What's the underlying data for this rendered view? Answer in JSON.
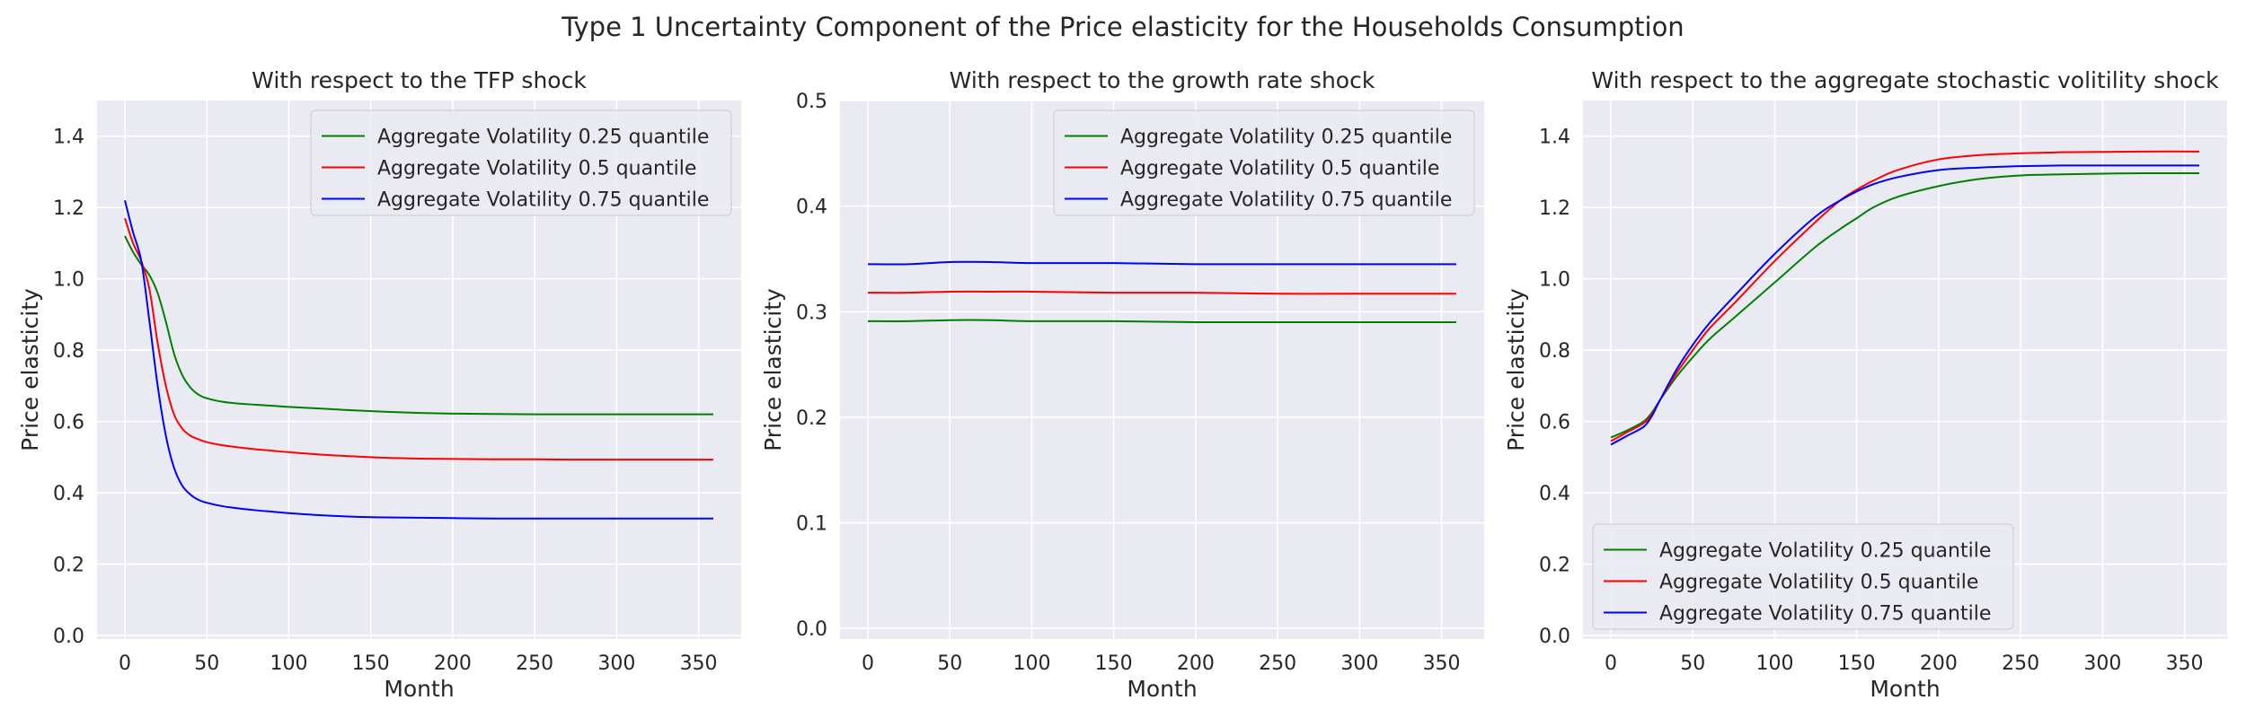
{
  "figure": {
    "suptitle": "Type 1 Uncertainty Component of the Price elasticity for the Households Consumption"
  },
  "chart_data": [
    {
      "type": "line",
      "title": "With respect to the TFP shock",
      "xlabel": "Month",
      "ylabel": "Price elasticity",
      "xlim": [
        -17,
        376
      ],
      "ylim": [
        -0.01,
        1.5
      ],
      "xticks": [
        0,
        50,
        100,
        150,
        200,
        250,
        300,
        350
      ],
      "yticks": [
        0.0,
        0.2,
        0.4,
        0.6,
        0.8,
        1.0,
        1.2,
        1.4
      ],
      "grid": true,
      "legend": "top-right",
      "x": [
        0,
        5,
        10,
        15,
        20,
        25,
        30,
        35,
        40,
        45,
        50,
        60,
        70,
        80,
        90,
        100,
        120,
        140,
        160,
        180,
        200,
        225,
        250,
        275,
        300,
        325,
        359
      ],
      "series": [
        {
          "name": "Aggregate Volatility 0.25 quantile",
          "color": "#008000",
          "values": [
            1.12,
            1.075,
            1.04,
            1.01,
            0.96,
            0.88,
            0.79,
            0.73,
            0.695,
            0.675,
            0.665,
            0.655,
            0.65,
            0.647,
            0.644,
            0.641,
            0.636,
            0.631,
            0.627,
            0.624,
            0.622,
            0.621,
            0.62,
            0.62,
            0.62,
            0.62,
            0.62
          ]
        },
        {
          "name": "Aggregate Volatility 0.5 quantile",
          "color": "#ff0000",
          "values": [
            1.17,
            1.1,
            1.05,
            0.97,
            0.82,
            0.7,
            0.62,
            0.58,
            0.56,
            0.55,
            0.542,
            0.533,
            0.527,
            0.522,
            0.518,
            0.514,
            0.507,
            0.502,
            0.498,
            0.496,
            0.495,
            0.494,
            0.494,
            0.493,
            0.493,
            0.493,
            0.493
          ]
        },
        {
          "name": "Aggregate Volatility 0.75 quantile",
          "color": "#0000ff",
          "values": [
            1.22,
            1.13,
            1.05,
            0.88,
            0.7,
            0.56,
            0.47,
            0.42,
            0.395,
            0.38,
            0.372,
            0.362,
            0.356,
            0.351,
            0.347,
            0.343,
            0.337,
            0.333,
            0.331,
            0.33,
            0.329,
            0.328,
            0.328,
            0.328,
            0.328,
            0.328,
            0.328
          ]
        }
      ]
    },
    {
      "type": "line",
      "title": "With respect to the growth rate shock",
      "xlabel": "Month",
      "ylabel": "Price elasticity",
      "xlim": [
        -17,
        376
      ],
      "ylim": [
        -0.01,
        0.5
      ],
      "xticks": [
        0,
        50,
        100,
        150,
        200,
        250,
        300,
        350
      ],
      "yticks": [
        0.0,
        0.1,
        0.2,
        0.3,
        0.4,
        0.5
      ],
      "grid": true,
      "legend": "top-right",
      "x": [
        0,
        25,
        50,
        75,
        100,
        150,
        200,
        250,
        300,
        359
      ],
      "series": [
        {
          "name": "Aggregate Volatility 0.25 quantile",
          "color": "#008000",
          "values": [
            0.291,
            0.291,
            0.292,
            0.292,
            0.291,
            0.291,
            0.29,
            0.29,
            0.29,
            0.29
          ]
        },
        {
          "name": "Aggregate Volatility 0.5 quantile",
          "color": "#ff0000",
          "values": [
            0.318,
            0.318,
            0.319,
            0.319,
            0.319,
            0.318,
            0.318,
            0.317,
            0.317,
            0.317
          ]
        },
        {
          "name": "Aggregate Volatility 0.75 quantile",
          "color": "#0000ff",
          "values": [
            0.345,
            0.345,
            0.347,
            0.347,
            0.346,
            0.346,
            0.345,
            0.345,
            0.345,
            0.345
          ]
        }
      ]
    },
    {
      "type": "line",
      "title": "With respect to the aggregate stochastic volitility shock",
      "xlabel": "Month",
      "ylabel": "Price elasticity",
      "xlim": [
        -17,
        376
      ],
      "ylim": [
        -0.01,
        1.5
      ],
      "xticks": [
        0,
        50,
        100,
        150,
        200,
        250,
        300,
        350
      ],
      "yticks": [
        0.0,
        0.2,
        0.4,
        0.6,
        0.8,
        1.0,
        1.2,
        1.4
      ],
      "grid": true,
      "legend": "bottom-left",
      "x": [
        0,
        10,
        20,
        25,
        30,
        40,
        50,
        60,
        75,
        100,
        125,
        140,
        150,
        160,
        175,
        200,
        225,
        250,
        275,
        300,
        325,
        359
      ],
      "series": [
        {
          "name": "Aggregate Volatility 0.25 quantile",
          "color": "#008000",
          "values": [
            0.555,
            0.575,
            0.6,
            0.625,
            0.66,
            0.725,
            0.78,
            0.83,
            0.89,
            0.99,
            1.09,
            1.14,
            1.17,
            1.2,
            1.23,
            1.26,
            1.28,
            1.29,
            1.293,
            1.295,
            1.296,
            1.296
          ]
        },
        {
          "name": "Aggregate Volatility 0.5 quantile",
          "color": "#ff0000",
          "values": [
            0.545,
            0.57,
            0.595,
            0.62,
            0.66,
            0.735,
            0.8,
            0.86,
            0.93,
            1.05,
            1.16,
            1.22,
            1.25,
            1.275,
            1.305,
            1.335,
            1.347,
            1.352,
            1.355,
            1.356,
            1.357,
            1.357
          ]
        },
        {
          "name": "Aggregate Volatility 0.75 quantile",
          "color": "#0000ff",
          "values": [
            0.535,
            0.56,
            0.585,
            0.615,
            0.66,
            0.745,
            0.815,
            0.875,
            0.95,
            1.07,
            1.175,
            1.22,
            1.245,
            1.265,
            1.285,
            1.305,
            1.312,
            1.316,
            1.318,
            1.318,
            1.318,
            1.318
          ]
        }
      ]
    }
  ]
}
